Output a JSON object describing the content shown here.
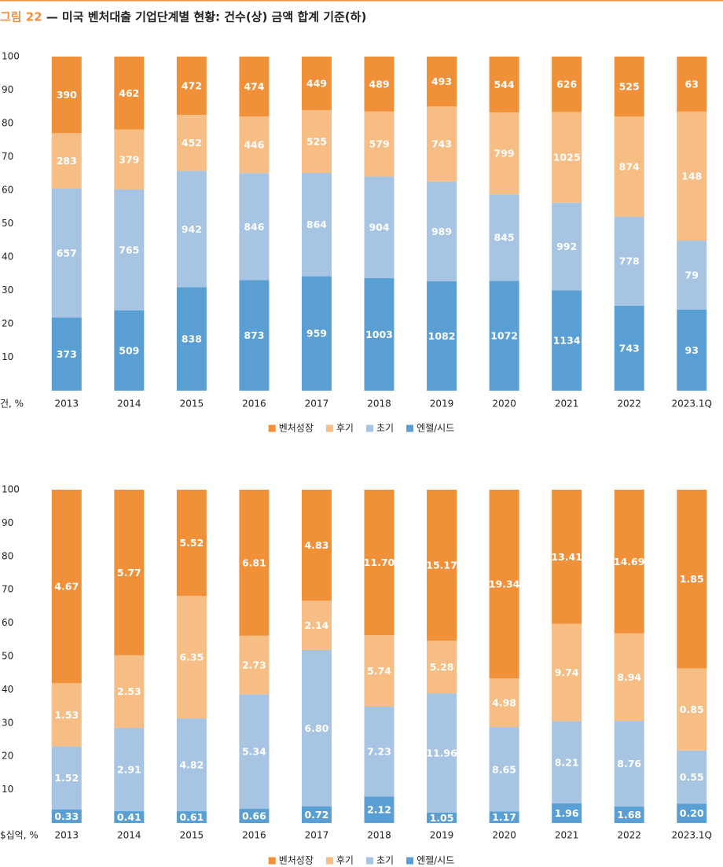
{
  "figure": "그림 22",
  "title": "— 미국 벤처대출 기업단계별 현황: 건수(상) 금액 합계 기준(하)",
  "chart_data": [
    {
      "type": "bar",
      "stacking": "percent",
      "y_axis_label": "건, %",
      "legend": "bottom",
      "categories": [
        "2013",
        "2014",
        "2015",
        "2016",
        "2017",
        "2018",
        "2019",
        "2020",
        "2021",
        "2022",
        "2023.1Q"
      ],
      "ylim": [
        0,
        100
      ],
      "yticks": [
        10,
        20,
        30,
        40,
        50,
        60,
        70,
        80,
        90,
        100
      ],
      "series": [
        {
          "name": "벤처성장",
          "color": "#f0913a",
          "values": [
            390,
            462,
            472,
            474,
            449,
            489,
            493,
            544,
            626,
            525,
            63
          ]
        },
        {
          "name": "후기",
          "color": "#f6be85",
          "values": [
            283,
            379,
            452,
            446,
            525,
            579,
            743,
            799,
            1025,
            874,
            148
          ]
        },
        {
          "name": "초기",
          "color": "#a7c4e3",
          "values": [
            657,
            765,
            942,
            846,
            864,
            904,
            989,
            845,
            992,
            778,
            79
          ]
        },
        {
          "name": "엔젤/시드",
          "color": "#5a9fd4",
          "values": [
            373,
            509,
            838,
            873,
            959,
            1003,
            1082,
            1072,
            1134,
            743,
            93
          ]
        }
      ]
    },
    {
      "type": "bar",
      "stacking": "percent",
      "y_axis_label": "$십억, %",
      "legend": "bottom",
      "categories": [
        "2013",
        "2014",
        "2015",
        "2016",
        "2017",
        "2018",
        "2019",
        "2020",
        "2021",
        "2022",
        "2023.1Q"
      ],
      "ylim": [
        0,
        100
      ],
      "yticks": [
        10,
        20,
        30,
        40,
        50,
        60,
        70,
        80,
        90,
        100
      ],
      "series": [
        {
          "name": "벤처성장",
          "color": "#f0913a",
          "values": [
            4.67,
            5.77,
            5.52,
            6.81,
            4.83,
            11.7,
            15.17,
            19.34,
            13.41,
            14.69,
            1.85
          ],
          "value_labels": [
            "4.67",
            "5.77",
            "5.52",
            "6.81",
            "4.83",
            "11.70",
            "15.17",
            "19.34",
            "13.41",
            "14.69",
            "1.85"
          ]
        },
        {
          "name": "후기",
          "color": "#f6be85",
          "values": [
            1.53,
            2.53,
            6.35,
            2.73,
            2.14,
            5.74,
            5.28,
            4.98,
            9.74,
            8.94,
            0.85
          ],
          "value_labels": [
            "1.53",
            "2.53",
            "6.35",
            "2.73",
            "2.14",
            "5.74",
            "5.28",
            "4.98",
            "9.74",
            "8.94",
            "0.85"
          ]
        },
        {
          "name": "초기",
          "color": "#a7c4e3",
          "values": [
            1.52,
            2.91,
            4.82,
            5.34,
            6.8,
            7.23,
            11.96,
            8.65,
            8.21,
            8.76,
            0.55
          ],
          "value_labels": [
            "1.52",
            "2.91",
            "4.82",
            "5.34",
            "6.80",
            "7.23",
            "11.96",
            "8.65",
            "8.21",
            "8.76",
            "0.55"
          ]
        },
        {
          "name": "엔젤/시드",
          "color": "#5a9fd4",
          "values": [
            0.33,
            0.41,
            0.61,
            0.66,
            0.72,
            2.12,
            1.05,
            1.17,
            1.96,
            1.68,
            0.2
          ],
          "value_labels": [
            "0.33",
            "0.41",
            "0.61",
            "0.66",
            "0.72",
            "2.12",
            "1.05",
            "1.17",
            "1.96",
            "1.68",
            "0.20"
          ]
        }
      ]
    }
  ]
}
